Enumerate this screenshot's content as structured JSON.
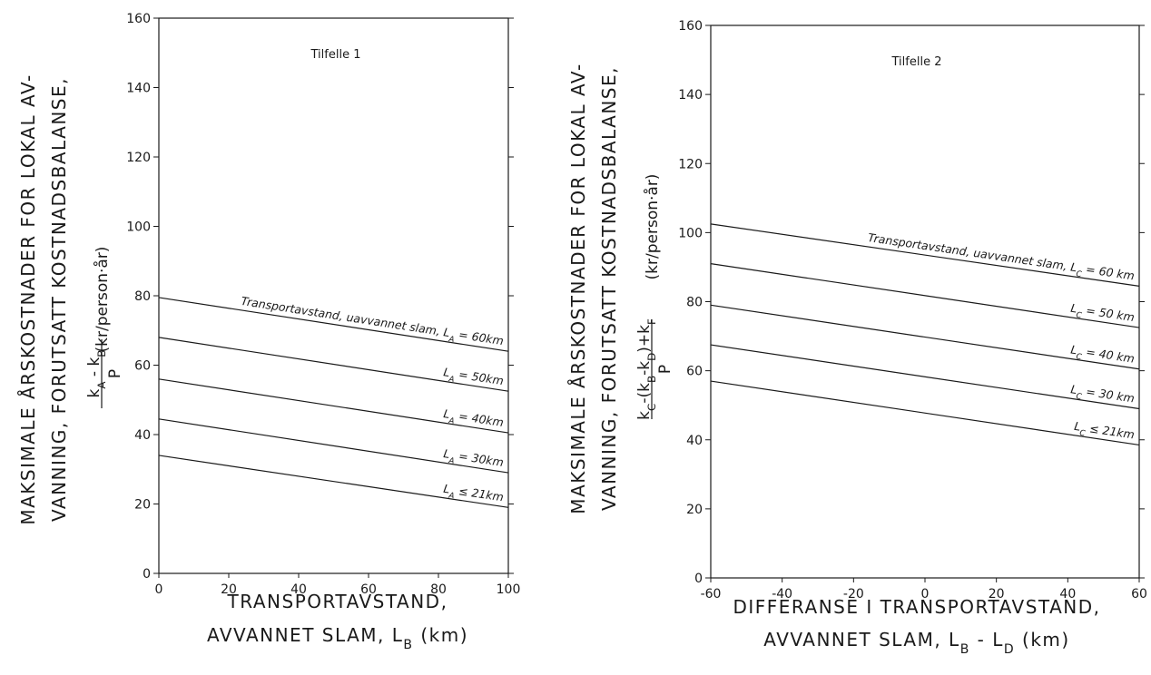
{
  "chart_data": [
    {
      "type": "line",
      "title": "Tilfelle 1",
      "xlabel": [
        "TRANSPORTAVSTAND,",
        "AVVANNET SLAM, L",
        "B",
        " (km)"
      ],
      "ylabel": [
        "MAKSIMALE ÅRSKOSTNADER FOR LOKAL AV-",
        "VANNING, FORUTSATT KOSTNADSBALANSE,"
      ],
      "ylabel_formula": {
        "numerator": "k - k",
        "num_sub1": "A",
        "num_sub2": "B",
        "denominator": "P",
        "unit": "(kr/person·år)"
      },
      "xlim": [
        0,
        100
      ],
      "ylim": [
        0,
        160
      ],
      "xticks": [
        0,
        20,
        40,
        60,
        80,
        100
      ],
      "yticks": [
        0,
        20,
        40,
        60,
        80,
        100,
        120,
        140,
        160
      ],
      "series": [
        {
          "name": "Transportavstand, uavvannet slam, L",
          "sub": "A",
          "suffix": "= 60km",
          "x": [
            0,
            100
          ],
          "y": [
            79.5,
            64
          ]
        },
        {
          "name": "L",
          "sub": "A",
          "suffix": "= 50km",
          "x": [
            0,
            100
          ],
          "y": [
            68,
            52.5
          ]
        },
        {
          "name": "L",
          "sub": "A",
          "suffix": "= 40km",
          "x": [
            0,
            100
          ],
          "y": [
            56,
            40.5
          ]
        },
        {
          "name": "L",
          "sub": "A",
          "suffix": "= 30km",
          "x": [
            0,
            100
          ],
          "y": [
            44.5,
            29
          ]
        },
        {
          "name": "L",
          "sub": "A",
          "suffix": "≤ 21km",
          "x": [
            0,
            100
          ],
          "y": [
            34,
            19
          ]
        }
      ]
    },
    {
      "type": "line",
      "title": "Tilfelle 2",
      "xlabel": [
        "DIFFERANSE I TRANSPORTAVSTAND,",
        "AVVANNET SLAM, L",
        "B",
        " - L",
        "D",
        " (km)"
      ],
      "ylabel": [
        "MAKSIMALE ÅRSKOSTNADER FOR LOKAL AV-",
        "VANNING, FORUTSATT KOSTNADSBALANSE,"
      ],
      "ylabel_formula": {
        "numerator": "k -(k -k )+k",
        "subs": [
          "C",
          "B",
          "D",
          "F"
        ],
        "denominator": "P",
        "unit": "(kr/person·år)"
      },
      "xlim": [
        -60,
        60
      ],
      "ylim": [
        0,
        160
      ],
      "xticks": [
        -60,
        -40,
        -20,
        0,
        20,
        40,
        60
      ],
      "yticks": [
        0,
        20,
        40,
        60,
        80,
        100,
        120,
        140,
        160
      ],
      "series": [
        {
          "name": "Transportavstand, uavvannet slam, L",
          "sub": "C",
          "suffix": "= 60 km",
          "x": [
            -60,
            60
          ],
          "y": [
            102.5,
            84.5
          ]
        },
        {
          "name": "L",
          "sub": "C",
          "suffix": "= 50 km",
          "x": [
            -60,
            60
          ],
          "y": [
            91,
            72.5
          ]
        },
        {
          "name": "L",
          "sub": "C",
          "suffix": "= 40 km",
          "x": [
            -60,
            60
          ],
          "y": [
            79,
            60.5
          ]
        },
        {
          "name": "L",
          "sub": "C",
          "suffix": "= 30 km",
          "x": [
            -60,
            60
          ],
          "y": [
            67.5,
            49
          ]
        },
        {
          "name": "L",
          "sub": "C",
          "suffix": "≤ 21km",
          "x": [
            -60,
            60
          ],
          "y": [
            57,
            38.5
          ]
        }
      ]
    }
  ]
}
